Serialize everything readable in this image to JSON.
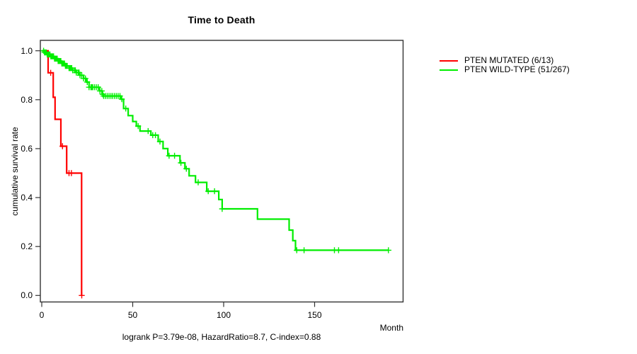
{
  "chart": {
    "title": "Time to Death",
    "xlabel": "Month",
    "ylabel": "cumulative survival rate",
    "annotation": "logrank P=3.79e-08, HazardRatio=8.7, C-index=0.88"
  },
  "legend": {
    "items": [
      {
        "label": "PTEN MUTATED (6/13)",
        "color": "#ff0000"
      },
      {
        "label": "PTEN WILD-TYPE (51/267)",
        "color": "#00ee00"
      }
    ]
  },
  "colors": {
    "mutated_curve": "#ff0000",
    "wildtype_curve": "#00ee00",
    "frame": "#333333",
    "text": "#000000",
    "background": "#ffffff"
  },
  "chart_data": {
    "type": "line",
    "subtype": "kaplan_meier_step",
    "title": "Time to Death",
    "xlabel": "Month",
    "ylabel": "cumulative survival rate",
    "annotation": "logrank P=3.79e-08, HazardRatio=8.7, C-index=0.88",
    "xlim": [
      0,
      198
    ],
    "ylim": [
      0.0,
      1.0
    ],
    "grid": false,
    "legend_position": "right-outside",
    "xticks": [
      {
        "v": 0,
        "label": "0"
      },
      {
        "v": 50,
        "label": "50"
      },
      {
        "v": 100,
        "label": "100"
      },
      {
        "v": 150,
        "label": "150"
      }
    ],
    "yticks": [
      {
        "v": 0.0,
        "label": "0.0"
      },
      {
        "v": 0.2,
        "label": "0.2"
      },
      {
        "v": 0.4,
        "label": "0.4"
      },
      {
        "v": 0.6,
        "label": "0.6"
      },
      {
        "v": 0.8,
        "label": "0.8"
      },
      {
        "v": 1.0,
        "label": "1.0"
      }
    ],
    "series": [
      {
        "name": "PTEN MUTATED (6/13)",
        "color": "#ff0000",
        "events_total": "6/13",
        "steps": [
          [
            0,
            1.0
          ],
          [
            3.5,
            0.91
          ],
          [
            6.3,
            0.81
          ],
          [
            7.3,
            0.72
          ],
          [
            10.5,
            0.61
          ],
          [
            13.7,
            0.5
          ],
          [
            21.9,
            0.0
          ]
        ],
        "end_month": 21.9,
        "censor_months": [
          4.9,
          11.4,
          15.0,
          16.3,
          22.0
        ]
      },
      {
        "name": "PTEN WILD-TYPE (51/267)",
        "color": "#00ee00",
        "events_total": "51/267",
        "steps": [
          [
            0,
            1.0
          ],
          [
            1.5,
            0.993
          ],
          [
            3,
            0.985
          ],
          [
            5,
            0.977
          ],
          [
            7,
            0.968
          ],
          [
            9,
            0.958
          ],
          [
            11,
            0.948
          ],
          [
            13,
            0.938
          ],
          [
            15,
            0.929
          ],
          [
            17,
            0.92
          ],
          [
            19,
            0.911
          ],
          [
            21,
            0.9
          ],
          [
            23,
            0.887
          ],
          [
            24.5,
            0.872
          ],
          [
            26,
            0.851
          ],
          [
            31.8,
            0.836
          ],
          [
            33.2,
            0.822
          ],
          [
            34,
            0.815
          ],
          [
            43.5,
            0.802
          ],
          [
            45,
            0.764
          ],
          [
            47.5,
            0.735
          ],
          [
            50,
            0.711
          ],
          [
            52,
            0.692
          ],
          [
            54,
            0.672
          ],
          [
            60,
            0.655
          ],
          [
            64,
            0.629
          ],
          [
            66.7,
            0.6
          ],
          [
            69.3,
            0.571
          ],
          [
            76,
            0.542
          ],
          [
            78.7,
            0.518
          ],
          [
            81,
            0.489
          ],
          [
            84.5,
            0.462
          ],
          [
            90.7,
            0.426
          ],
          [
            97.3,
            0.392
          ],
          [
            99.2,
            0.354
          ],
          [
            118.6,
            0.312
          ],
          [
            136,
            0.267
          ],
          [
            138,
            0.224
          ],
          [
            139.5,
            0.185
          ]
        ],
        "end_month": 190.6,
        "censor_months": [
          1,
          1.5,
          2,
          2.5,
          3,
          3.5,
          4,
          4.5,
          5,
          5.5,
          6,
          6.5,
          7,
          7.5,
          8,
          8.5,
          9,
          9.5,
          10,
          10.5,
          11,
          11.5,
          12,
          12.5,
          13,
          13.5,
          14,
          15,
          15.5,
          16,
          16.5,
          17,
          18,
          18.5,
          19,
          20,
          20.5,
          21,
          22,
          23,
          24,
          25,
          26,
          27,
          27.5,
          28,
          29,
          30,
          31,
          32,
          33,
          33.5,
          34,
          35,
          36,
          37,
          38,
          39,
          40,
          41,
          42,
          43,
          44,
          46.2,
          53,
          58.5,
          61,
          62.5,
          65,
          70,
          73,
          76.5,
          79.5,
          86,
          91.5,
          95,
          99.2,
          140.2,
          144.2,
          160.9,
          163.2,
          190.6
        ]
      }
    ]
  }
}
